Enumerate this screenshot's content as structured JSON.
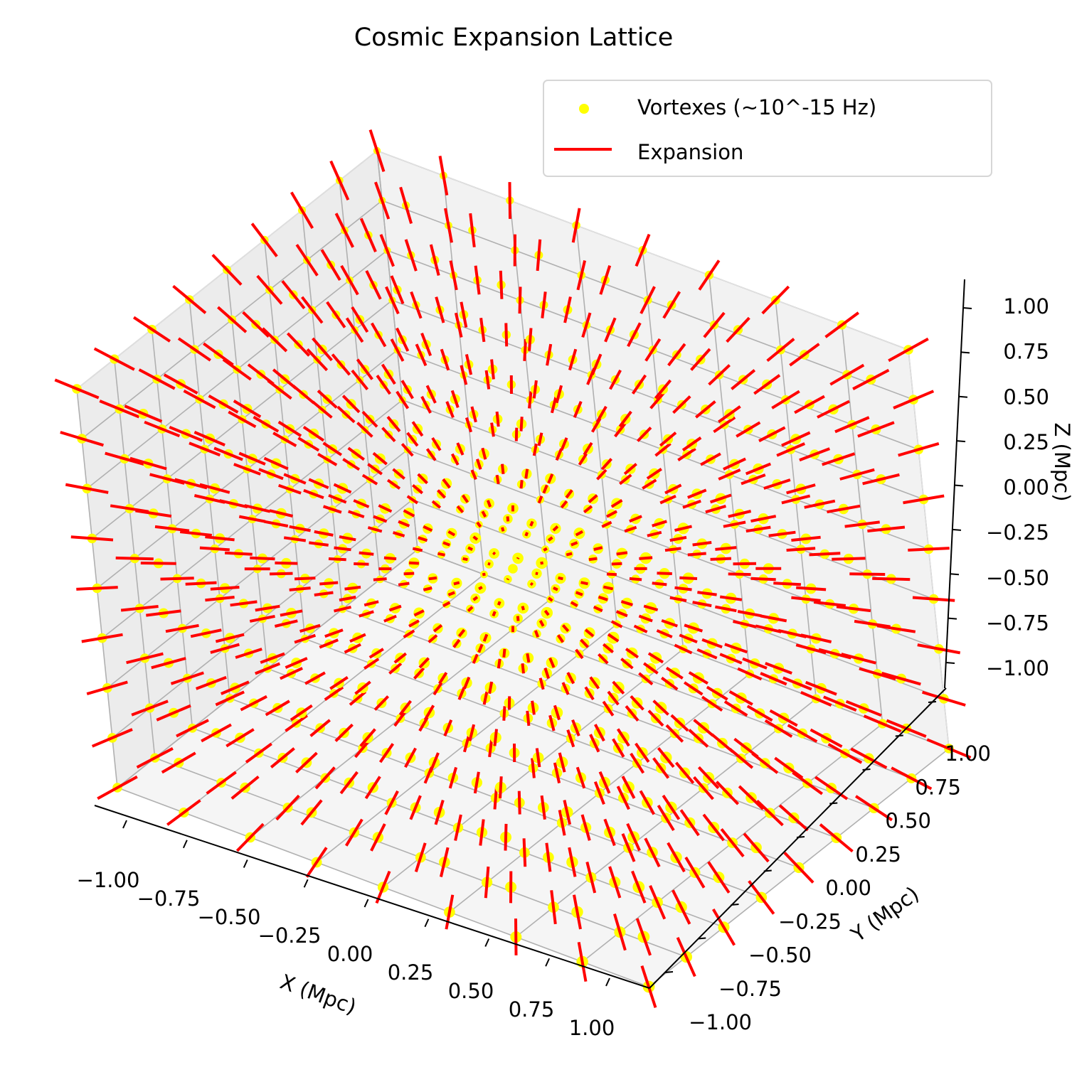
{
  "chart_data": {
    "type": "scatter",
    "projection": "3d",
    "title": "Cosmic Expansion Lattice",
    "xlabel": "X (Mpc)",
    "ylabel": "Y (Mpc)",
    "zlabel": "Z (Mpc)",
    "xlim": [
      -1.0,
      1.0
    ],
    "ylim": [
      -1.0,
      1.0
    ],
    "zlim": [
      -1.0,
      1.0
    ],
    "x_ticks": [
      "−1.00",
      "−0.75",
      "−0.50",
      "−0.25",
      "0.00",
      "0.25",
      "0.50",
      "0.75",
      "1.00"
    ],
    "y_ticks": [
      "−1.00",
      "−0.75",
      "−0.50",
      "−0.25",
      "0.00",
      "0.25",
      "0.50",
      "0.75",
      "1.00"
    ],
    "z_ticks": [
      "−1.00",
      "−0.75",
      "−0.50",
      "−0.25",
      "0.00",
      "0.25",
      "0.50",
      "0.75",
      "1.00"
    ],
    "grid": true,
    "legend_position": "top-right",
    "lattice": {
      "axis_values": [
        -1.0,
        -0.75,
        -0.5,
        -0.25,
        0.0,
        0.25,
        0.5,
        0.75,
        1.0
      ],
      "points_per_axis": 9
    },
    "series": [
      {
        "name": "Vortexes (~10^-15 Hz)",
        "kind": "scatter",
        "color": "#ffff00"
      },
      {
        "name": "Expansion",
        "kind": "line",
        "color": "#ff0000",
        "vector_scale": 0.05
      }
    ]
  }
}
